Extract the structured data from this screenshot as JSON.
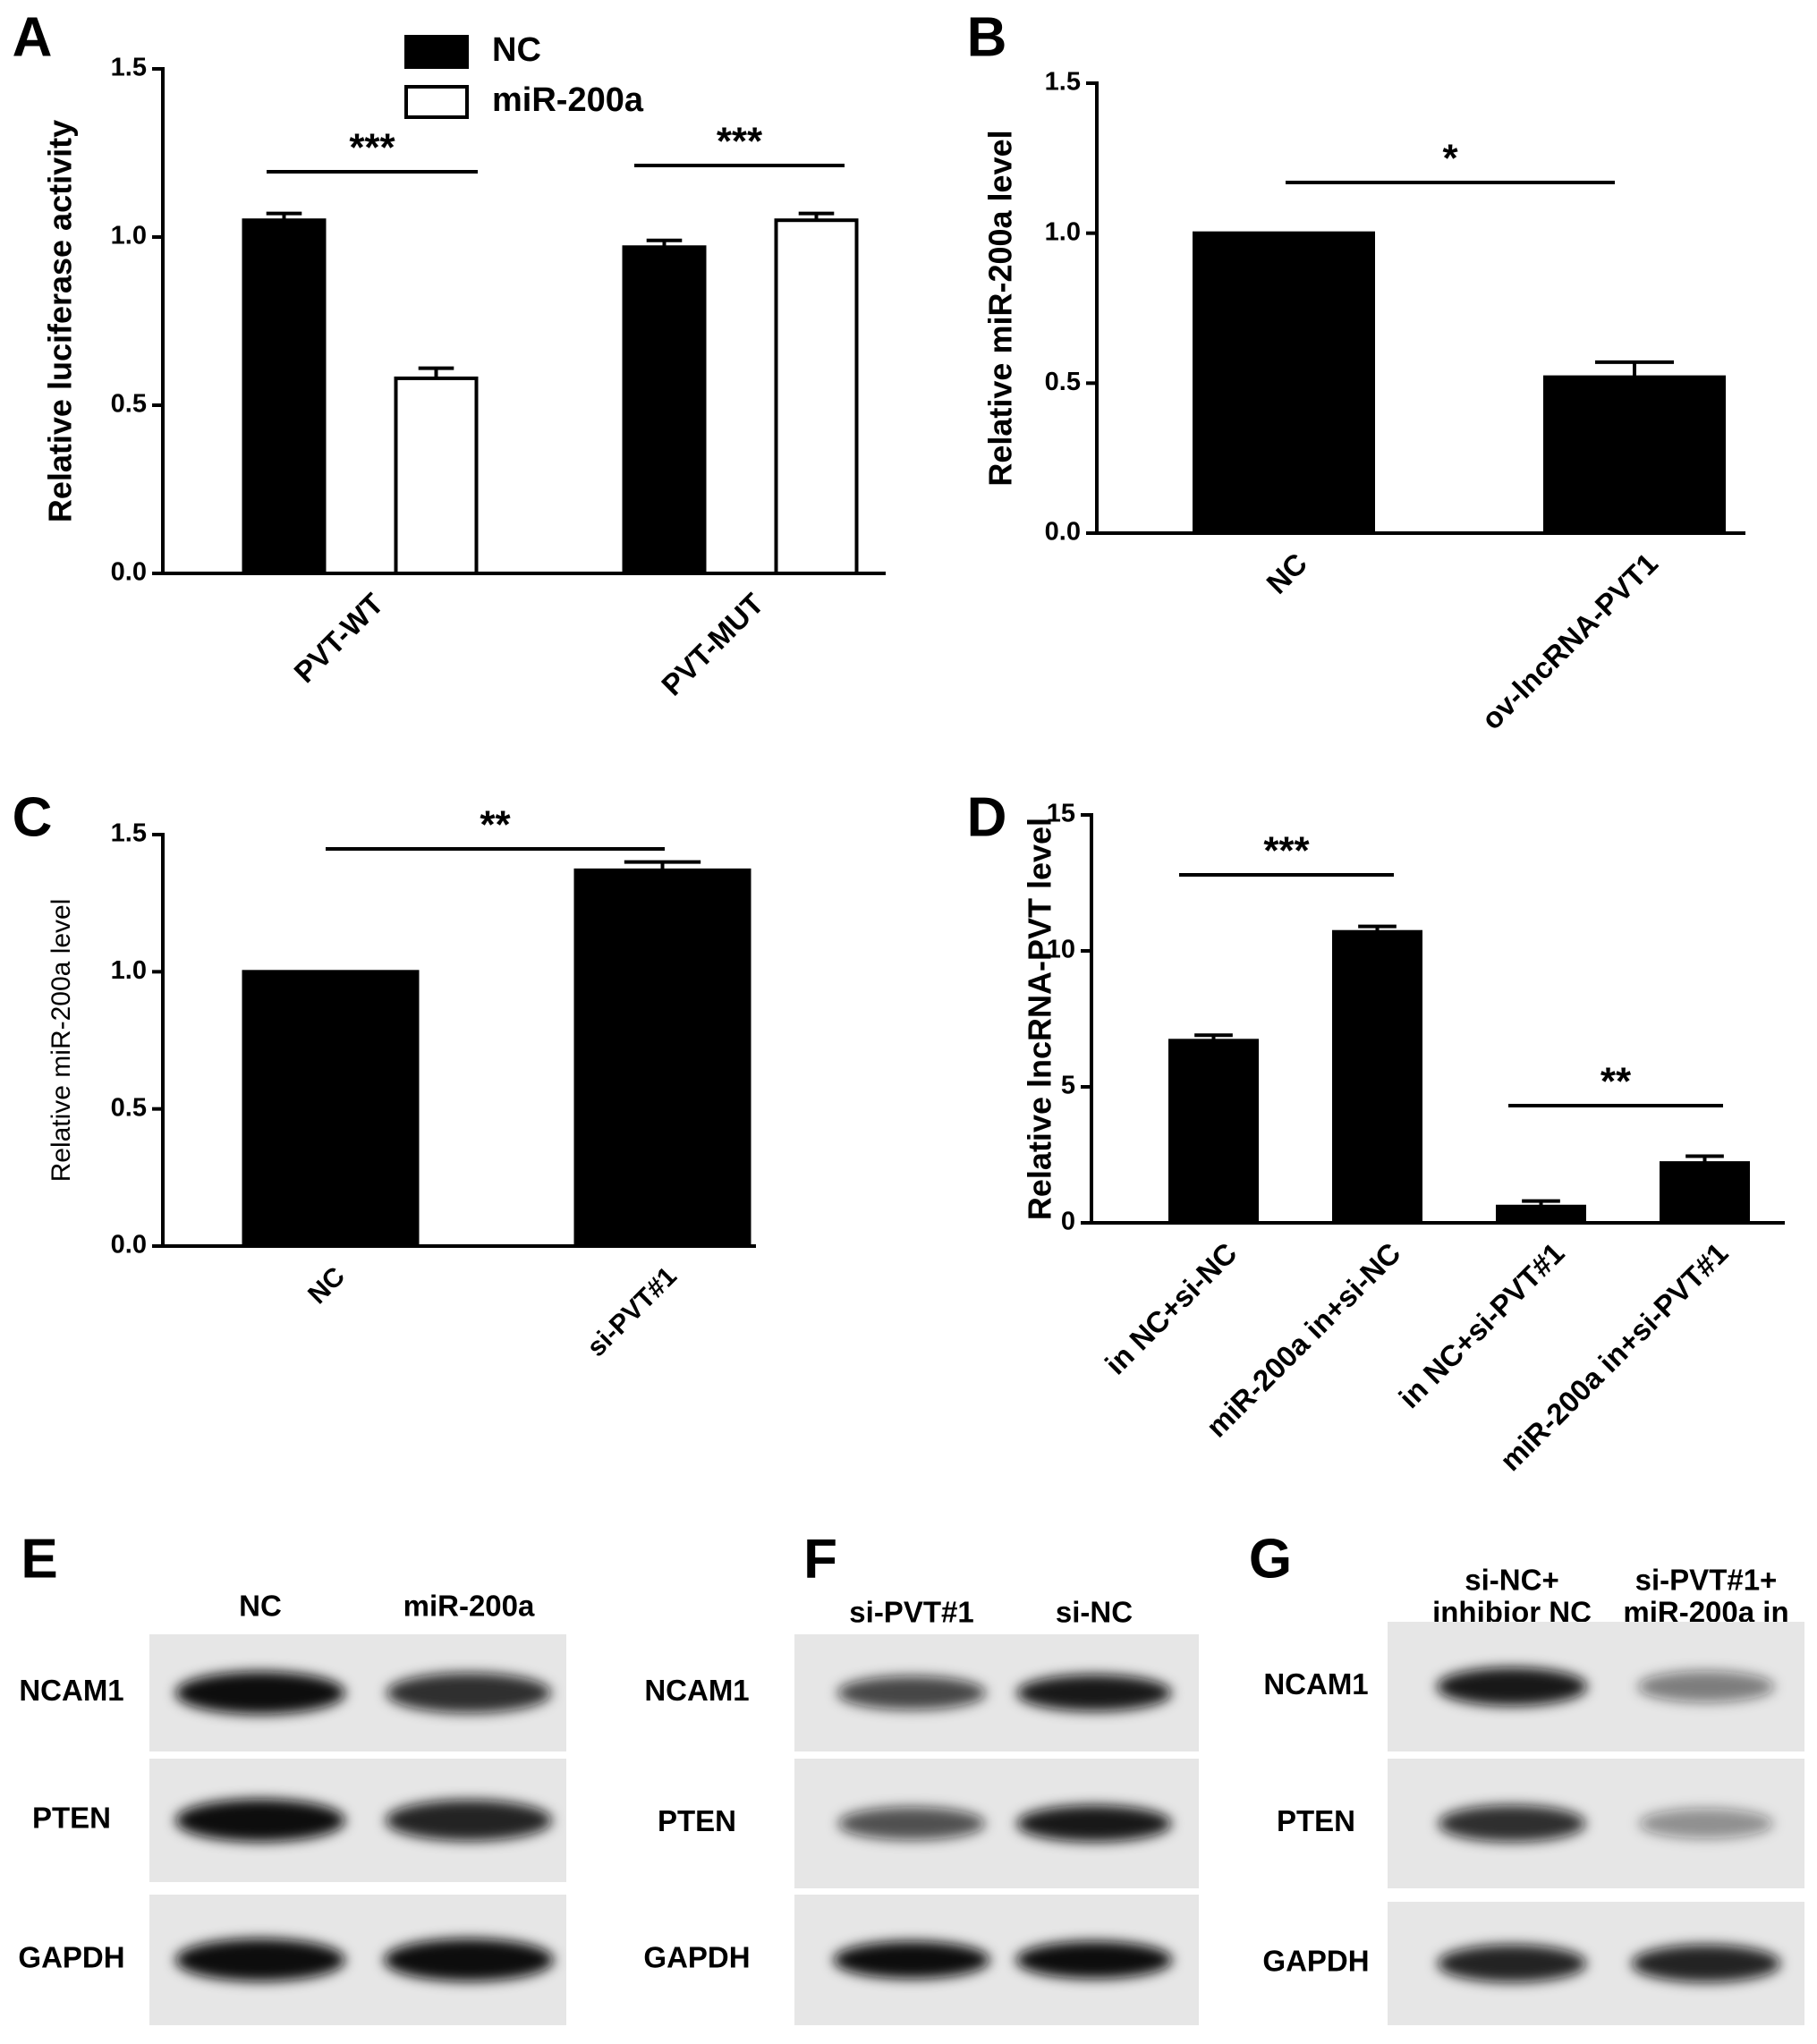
{
  "chart_data": [
    {
      "type": "bar",
      "panel": "A",
      "ylabel": "Relative luciferase activity",
      "categories": [
        "PVT-WT",
        "PVT-MUT"
      ],
      "series": [
        {
          "name": "NC",
          "color": "#000000",
          "values": [
            1.05,
            0.97
          ],
          "errors": [
            0.02,
            0.02
          ]
        },
        {
          "name": "miR-200a",
          "color": "#ffffff",
          "values": [
            0.58,
            1.05
          ],
          "errors": [
            0.03,
            0.02
          ]
        }
      ],
      "ylim": [
        0,
        1.5
      ],
      "yticks": [
        {
          "value": 0,
          "label": "0.0"
        },
        {
          "value": 0.5,
          "label": "0.5"
        },
        {
          "value": 1,
          "label": "1.0"
        },
        {
          "value": 1.5,
          "label": "1.5"
        }
      ],
      "annotations": [
        "***",
        "***"
      ]
    },
    {
      "type": "bar",
      "panel": "B",
      "ylabel": "Relative miR-200a  level",
      "categories": [
        "NC",
        "ov-lncRNA-PVT1"
      ],
      "series": [
        {
          "color": "#000000",
          "values": [
            1.0,
            0.52
          ],
          "errors": [
            null,
            0.05
          ]
        }
      ],
      "ylim": [
        0,
        1.5
      ],
      "yticks": [
        {
          "value": 0,
          "label": "0.0"
        },
        {
          "value": 0.5,
          "label": "0.5"
        },
        {
          "value": 1,
          "label": "1.0"
        },
        {
          "value": 1.5,
          "label": "1.5"
        }
      ],
      "annotations": [
        "*"
      ]
    },
    {
      "type": "bar",
      "panel": "C",
      "ylabel": "Relative miR-200a level",
      "categories": [
        "NC",
        "si-PVT#1"
      ],
      "series": [
        {
          "color": "#000000",
          "values": [
            1.0,
            1.37
          ],
          "errors": [
            null,
            0.03
          ]
        }
      ],
      "ylim": [
        0,
        1.5
      ],
      "yticks": [
        {
          "value": 0,
          "label": "0.0"
        },
        {
          "value": 0.5,
          "label": "0.5"
        },
        {
          "value": 1,
          "label": "1.0"
        },
        {
          "value": 1.5,
          "label": "1.5"
        }
      ],
      "annotations": [
        "**"
      ]
    },
    {
      "type": "bar",
      "panel": "D",
      "ylabel": "Relative lncRNA-PVT  level",
      "categories": [
        "in NC+si-NC",
        "miR-200a in+si-NC",
        "in NC+si-PVT#1",
        "miR-200a in+si-PVT#1"
      ],
      "series": [
        {
          "color": "#000000",
          "values": [
            6.7,
            10.7,
            0.6,
            2.2
          ],
          "errors": [
            0.2,
            0.2,
            0.2,
            0.25
          ]
        }
      ],
      "ylim": [
        0,
        15
      ],
      "yticks": [
        0,
        5,
        10,
        15
      ],
      "annotations": [
        "***",
        "**"
      ]
    }
  ],
  "blots": [
    {
      "panel": "E",
      "lanes": [
        [
          "NC"
        ],
        [
          "miR-200a"
        ]
      ],
      "rows": [
        "NCAM1",
        "PTEN",
        "GAPDH"
      ]
    },
    {
      "panel": "F",
      "lanes": [
        [
          "si-PVT#1"
        ],
        [
          "si-NC"
        ]
      ],
      "rows": [
        "NCAM1",
        "PTEN",
        "GAPDH"
      ]
    },
    {
      "panel": "G",
      "lanes": [
        [
          "si-NC+",
          "inhibior NC"
        ],
        [
          "si-PVT#1+",
          "miR-200a in"
        ]
      ],
      "rows": [
        "NCAM1",
        "PTEN",
        "GAPDH"
      ]
    }
  ]
}
